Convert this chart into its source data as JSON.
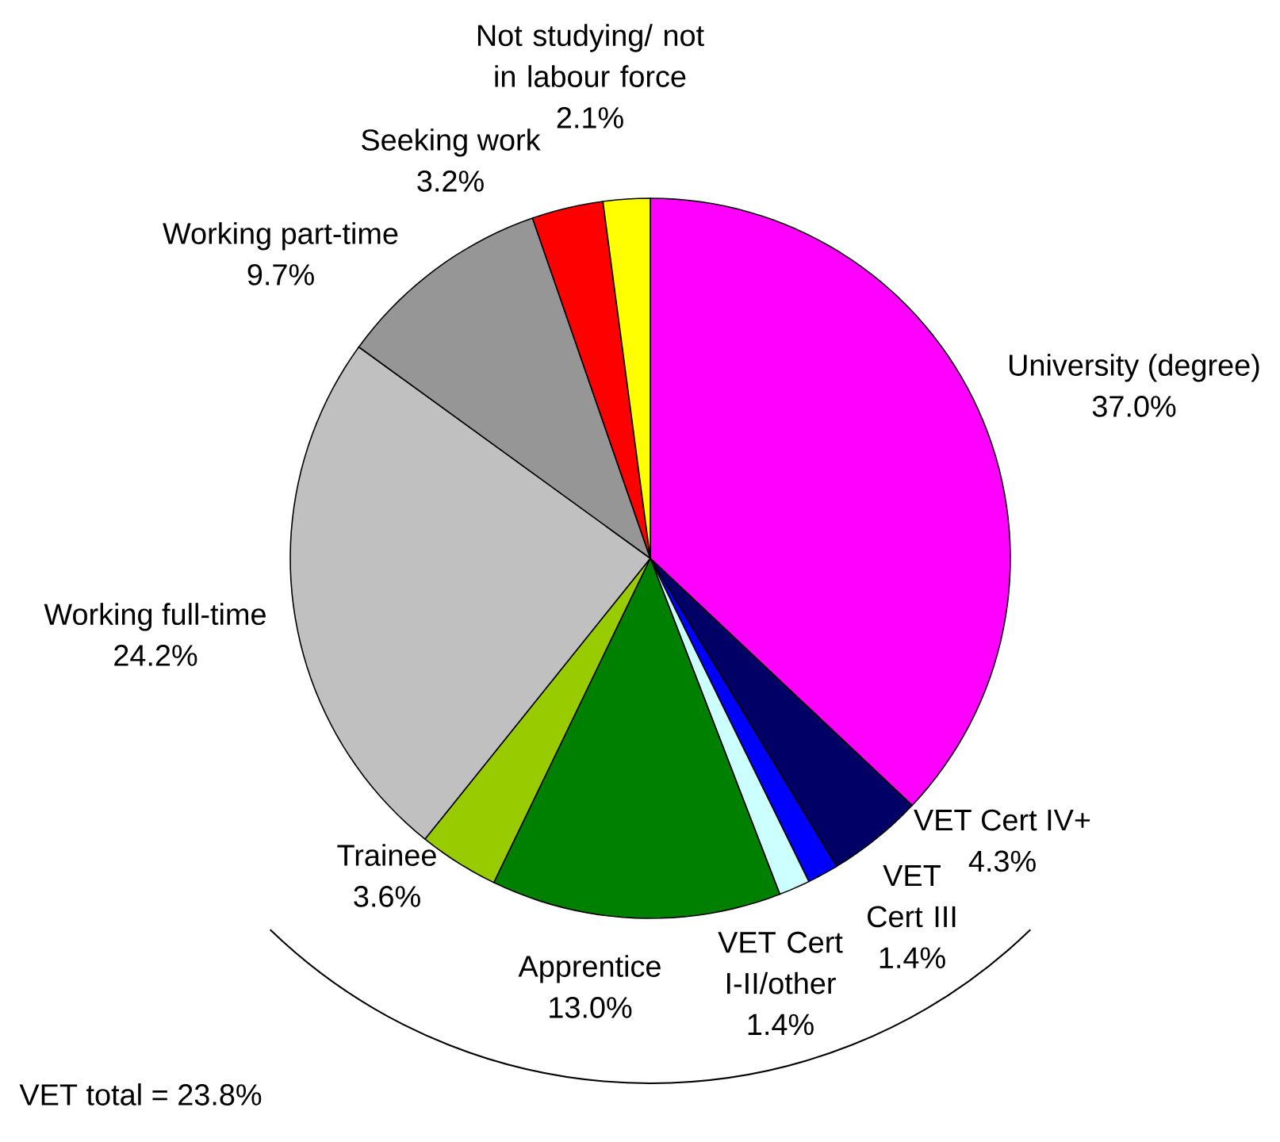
{
  "chart_data": {
    "type": "pie",
    "categories": [
      "University (degree)",
      "VET Cert IV+",
      "VET Cert III",
      "VET Cert I-II/other",
      "Apprentice",
      "Trainee",
      "Working full-time",
      "Working part-time",
      "Seeking work",
      "Not studying/ not in labour force"
    ],
    "values": [
      37.0,
      4.3,
      1.4,
      1.4,
      13.0,
      3.6,
      24.2,
      9.7,
      3.2,
      2.1
    ],
    "value_labels": [
      "37.0%",
      "4.3%",
      "1.4%",
      "1.4%",
      "13.0%",
      "3.6%",
      "24.2%",
      "9.7%",
      "3.2%",
      "2.1%"
    ],
    "colors": [
      "#ff00ff",
      "#000066",
      "#0000ff",
      "#ccffff",
      "#008000",
      "#99cc00",
      "#c0c0c0",
      "#969696",
      "#ff0000",
      "#ffff00"
    ],
    "annotations": [
      "VET total = 23.8%"
    ]
  }
}
